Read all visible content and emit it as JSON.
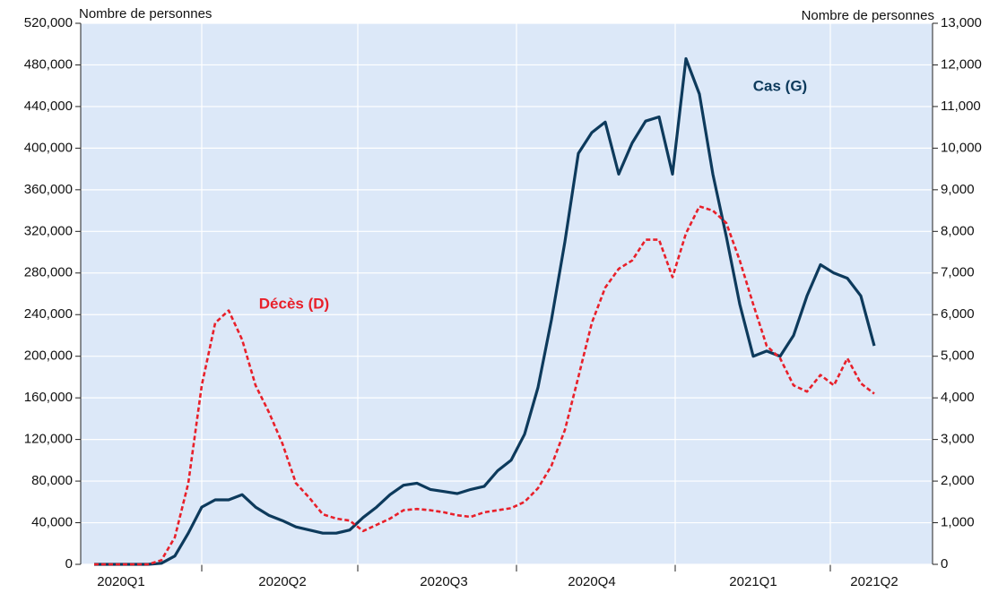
{
  "chart_data": {
    "type": "line",
    "left_axis_label": "Nombre de personnes",
    "right_axis_label": "Nombre de personnes",
    "categories": [
      null,
      null,
      "2020Q1",
      null,
      null,
      null,
      null,
      null,
      null,
      null,
      null,
      null,
      null,
      null,
      "2020Q2",
      null,
      null,
      null,
      null,
      null,
      null,
      null,
      null,
      null,
      null,
      null,
      "2020Q3",
      null,
      null,
      null,
      null,
      null,
      null,
      null,
      null,
      null,
      null,
      "2020Q4",
      null,
      null,
      null,
      null,
      null,
      null,
      null,
      null,
      null,
      null,
      null,
      "2021Q1",
      null,
      null,
      null,
      null,
      null,
      null,
      null,
      null,
      "2021Q2"
    ],
    "series": [
      {
        "name": "Cas (G)",
        "color": "#0d3a5c",
        "axis": "y",
        "linestyle": "solid",
        "values": [
          0,
          0,
          0,
          0,
          0,
          1000,
          8000,
          30000,
          55000,
          62000,
          62000,
          67000,
          55000,
          47000,
          42000,
          36000,
          33000,
          30000,
          30000,
          33000,
          45000,
          55000,
          67000,
          76000,
          78000,
          72000,
          70000,
          68000,
          72000,
          75000,
          90000,
          100000,
          125000,
          170000,
          235000,
          310000,
          395000,
          415000,
          425000,
          375000,
          405000,
          426000,
          430000,
          375000,
          486000,
          452000,
          375000,
          315000,
          250000,
          200000,
          205000,
          200000,
          220000,
          258000,
          288000,
          280000,
          275000,
          258000,
          210000
        ]
      },
      {
        "name": "Décès (D)",
        "color": "#e8202a",
        "axis": "y2",
        "linestyle": "dashed",
        "values": [
          0,
          0,
          0,
          0,
          0,
          100,
          650,
          1950,
          4300,
          5800,
          6100,
          5400,
          4300,
          3650,
          2900,
          1950,
          1600,
          1200,
          1100,
          1050,
          800,
          950,
          1100,
          1300,
          1330,
          1300,
          1250,
          1180,
          1140,
          1250,
          1300,
          1350,
          1500,
          1830,
          2370,
          3230,
          4500,
          5800,
          6650,
          7100,
          7300,
          7800,
          7800,
          6900,
          7950,
          8600,
          8500,
          8200,
          7300,
          6250,
          5250,
          4950,
          4300,
          4150,
          4550,
          4300,
          4950,
          4350,
          4100
        ]
      }
    ],
    "ylim": [
      0,
      520000
    ],
    "yticks": [
      0,
      {
        "value": 40000,
        "label": "40,000"
      },
      {
        "value": 80000,
        "label": "80,000"
      },
      {
        "value": 120000,
        "label": "120,000"
      },
      {
        "value": 160000,
        "label": "160,000"
      },
      {
        "value": 200000,
        "label": "200,000"
      },
      {
        "value": 240000,
        "label": "240,000"
      },
      {
        "value": 280000,
        "label": "280,000"
      },
      {
        "value": 320000,
        "label": "320,000"
      },
      {
        "value": 360000,
        "label": "360,000"
      },
      {
        "value": 400000,
        "label": "400,000"
      },
      {
        "value": 440000,
        "label": "440,000"
      },
      {
        "value": 480000,
        "label": "480,000"
      },
      {
        "value": 520000,
        "label": "520,000"
      }
    ],
    "y2lim": [
      0,
      13000
    ],
    "y2ticks": [
      0,
      {
        "value": 1000,
        "label": "1,000"
      },
      {
        "value": 2000,
        "label": "2,000"
      },
      {
        "value": 3000,
        "label": "3,000"
      },
      {
        "value": 4000,
        "label": "4,000"
      },
      {
        "value": 5000,
        "label": "5,000"
      },
      {
        "value": 6000,
        "label": "6,000"
      },
      {
        "value": 7000,
        "label": "7,000"
      },
      {
        "value": 8000,
        "label": "8,000"
      },
      {
        "value": 9000,
        "label": "9,000"
      },
      {
        "value": 10000,
        "label": "10,000"
      },
      {
        "value": 11000,
        "label": "11,000"
      },
      {
        "value": 12000,
        "label": "12,000"
      },
      {
        "value": 13000,
        "label": "13,000"
      }
    ],
    "grid": true,
    "background": "#dce8f8"
  }
}
